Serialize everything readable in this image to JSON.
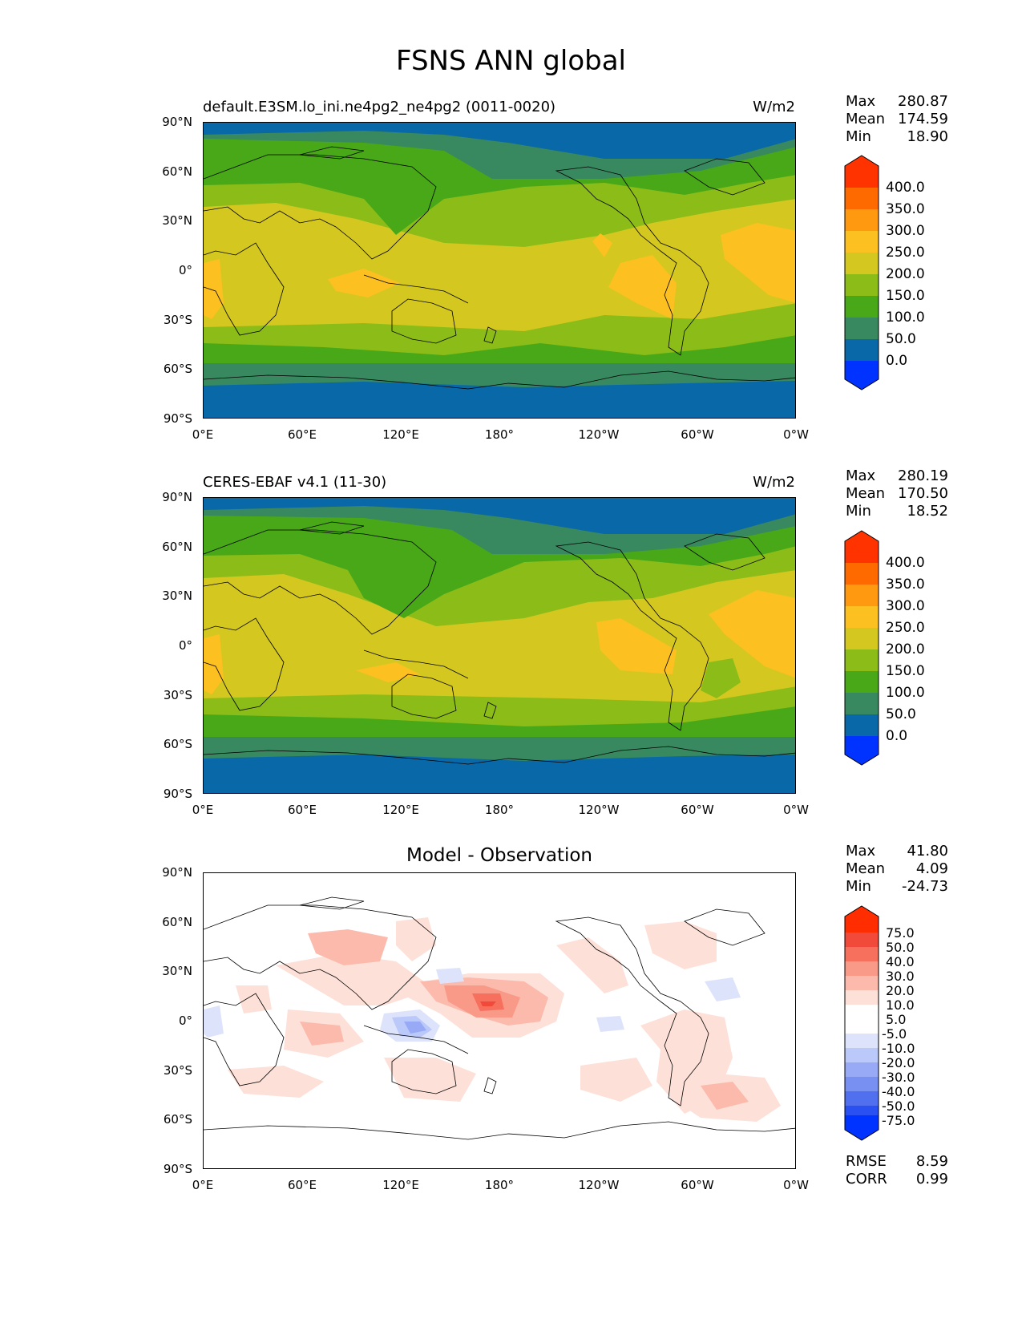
{
  "title": "FSNS ANN global",
  "axes": {
    "lat_labels": [
      "90°N",
      "60°N",
      "30°N",
      "0°",
      "30°S",
      "60°S",
      "90°S"
    ],
    "lon_labels": [
      "0°E",
      "60°E",
      "120°E",
      "180°",
      "120°W",
      "60°W",
      "0°W"
    ]
  },
  "panels": [
    {
      "subtitle": "default.E3SM.lo_ini.ne4pg2_ne4pg2 (0011-0020)",
      "units": "W/m2",
      "stats": {
        "max_label": "Max",
        "max": "280.87",
        "mean_label": "Mean",
        "mean": "174.59",
        "min_label": "Min",
        "min": "18.90"
      },
      "colorbar": {
        "labels": [
          "400.0",
          "350.0",
          "300.0",
          "250.0",
          "200.0",
          "150.0",
          "100.0",
          "50.0",
          "0.0"
        ],
        "colors": [
          "#ff3300",
          "#ff6a00",
          "#ff9a10",
          "#fcc020",
          "#d4c820",
          "#8cbc18",
          "#48a818",
          "#388860",
          "#0868a8",
          "#0033ff"
        ]
      }
    },
    {
      "subtitle": "CERES-EBAF v4.1 (11-30)",
      "units": "W/m2",
      "stats": {
        "max_label": "Max",
        "max": "280.19",
        "mean_label": "Mean",
        "mean": "170.50",
        "min_label": "Min",
        "min": "18.52"
      },
      "colorbar": {
        "labels": [
          "400.0",
          "350.0",
          "300.0",
          "250.0",
          "200.0",
          "150.0",
          "100.0",
          "50.0",
          "0.0"
        ],
        "colors": [
          "#ff3300",
          "#ff6a00",
          "#ff9a10",
          "#fcc020",
          "#d4c820",
          "#8cbc18",
          "#48a818",
          "#388860",
          "#0868a8",
          "#0033ff"
        ]
      }
    },
    {
      "title": "Model - Observation",
      "stats": {
        "max_label": "Max",
        "max": "41.80",
        "mean_label": "Mean",
        "mean": "4.09",
        "min_label": "Min",
        "min": "-24.73"
      },
      "colorbar": {
        "labels": [
          "75.0",
          "50.0",
          "40.0",
          "30.0",
          "20.0",
          "10.0",
          "5.0",
          "-5.0",
          "-10.0",
          "-20.0",
          "-30.0",
          "-40.0",
          "-50.0",
          "-75.0"
        ],
        "colors": [
          "#ff2d00",
          "#f24a3a",
          "#f7705e",
          "#f99a88",
          "#fbbaac",
          "#fde0d8",
          "#ffffff",
          "#ffffff",
          "#dde3fb",
          "#bac8fa",
          "#98aaf5",
          "#7890f2",
          "#5070ef",
          "#2a50f2",
          "#0033ff"
        ]
      },
      "metrics": {
        "rmse_label": "RMSE",
        "rmse": "8.59",
        "corr_label": "CORR",
        "corr": "0.99"
      }
    }
  ]
}
